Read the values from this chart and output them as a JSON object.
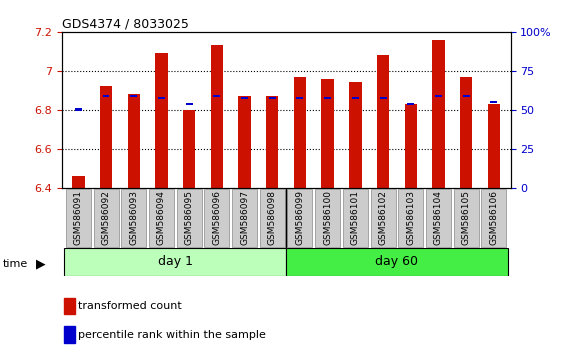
{
  "title": "GDS4374 / 8033025",
  "samples": [
    "GSM586091",
    "GSM586092",
    "GSM586093",
    "GSM586094",
    "GSM586095",
    "GSM586096",
    "GSM586097",
    "GSM586098",
    "GSM586099",
    "GSM586100",
    "GSM586101",
    "GSM586102",
    "GSM586103",
    "GSM586104",
    "GSM586105",
    "GSM586106"
  ],
  "bar_heights": [
    6.46,
    6.92,
    6.88,
    7.09,
    6.8,
    7.13,
    6.87,
    6.87,
    6.97,
    6.96,
    6.94,
    7.08,
    6.83,
    7.16,
    6.97,
    6.83
  ],
  "percentile_values": [
    6.8,
    6.87,
    6.87,
    6.86,
    6.83,
    6.87,
    6.86,
    6.86,
    6.86,
    6.86,
    6.86,
    6.86,
    6.83,
    6.87,
    6.87,
    6.84
  ],
  "bar_color": "#CC1100",
  "percentile_color": "#0000CC",
  "bar_bottom": 6.4,
  "ylim": [
    6.4,
    7.2
  ],
  "ylim_right": [
    0,
    100
  ],
  "yticks_left": [
    6.4,
    6.6,
    6.8,
    7.0,
    7.2
  ],
  "ytick_labels_left": [
    "6.4",
    "6.6",
    "6.8",
    "7",
    "7.2"
  ],
  "yticks_right": [
    0,
    25,
    50,
    75,
    100
  ],
  "ytick_labels_right": [
    "0",
    "25",
    "50",
    "75",
    "100%"
  ],
  "grid_values": [
    6.6,
    6.8,
    7.0
  ],
  "day1_samples": 8,
  "day1_label": "day 1",
  "day60_label": "day 60",
  "day1_color": "#bbffbb",
  "day60_color": "#44ee44",
  "legend_bar_label": "transformed count",
  "legend_percentile_label": "percentile rank within the sample",
  "bg_color": "#ffffff",
  "tick_color_left": "#CC1100",
  "tick_color_right": "#0000CC",
  "bar_width": 0.45,
  "label_box_color": "#cccccc",
  "label_box_edge": "#888888"
}
